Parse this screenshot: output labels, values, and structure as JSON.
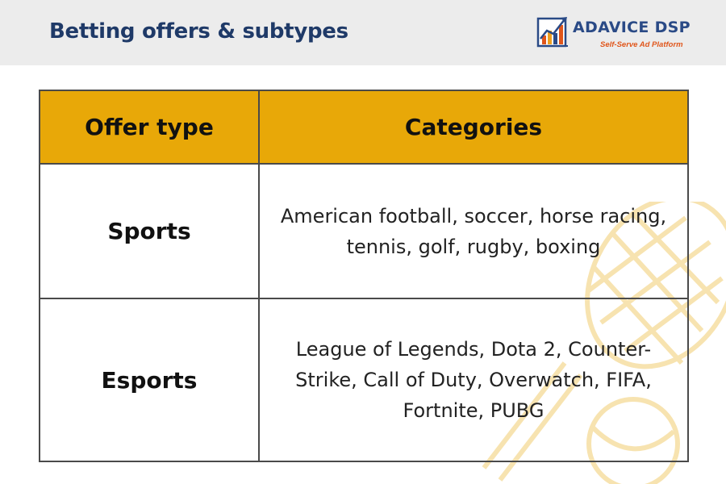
{
  "header": {
    "title": "Betting offers & subtypes",
    "logo": {
      "name": "ADAVICE DSP",
      "tagline": "Self-Serve Ad Platform",
      "icon": "bar-chart-logo-icon",
      "colors": {
        "name": "#2a4a86",
        "tagline": "#e0561b"
      }
    }
  },
  "table": {
    "headers": [
      "Offer type",
      "Categories"
    ],
    "rows": [
      {
        "type": "Sports",
        "categories": "American football, soccer, horse racing, tennis, golf, rugby, boxing"
      },
      {
        "type": "Esports",
        "categories": "League of Legends, Dota 2, Counter-Strike, Call of Duty, Overwatch, FIFA, Fortnite, PUBG"
      }
    ],
    "colors": {
      "header_bg": "#e8a808",
      "border": "#4a4a4a"
    }
  },
  "decoration": {
    "icon": "tennis-racket-ball-icon",
    "color": "#f7e3b0"
  }
}
